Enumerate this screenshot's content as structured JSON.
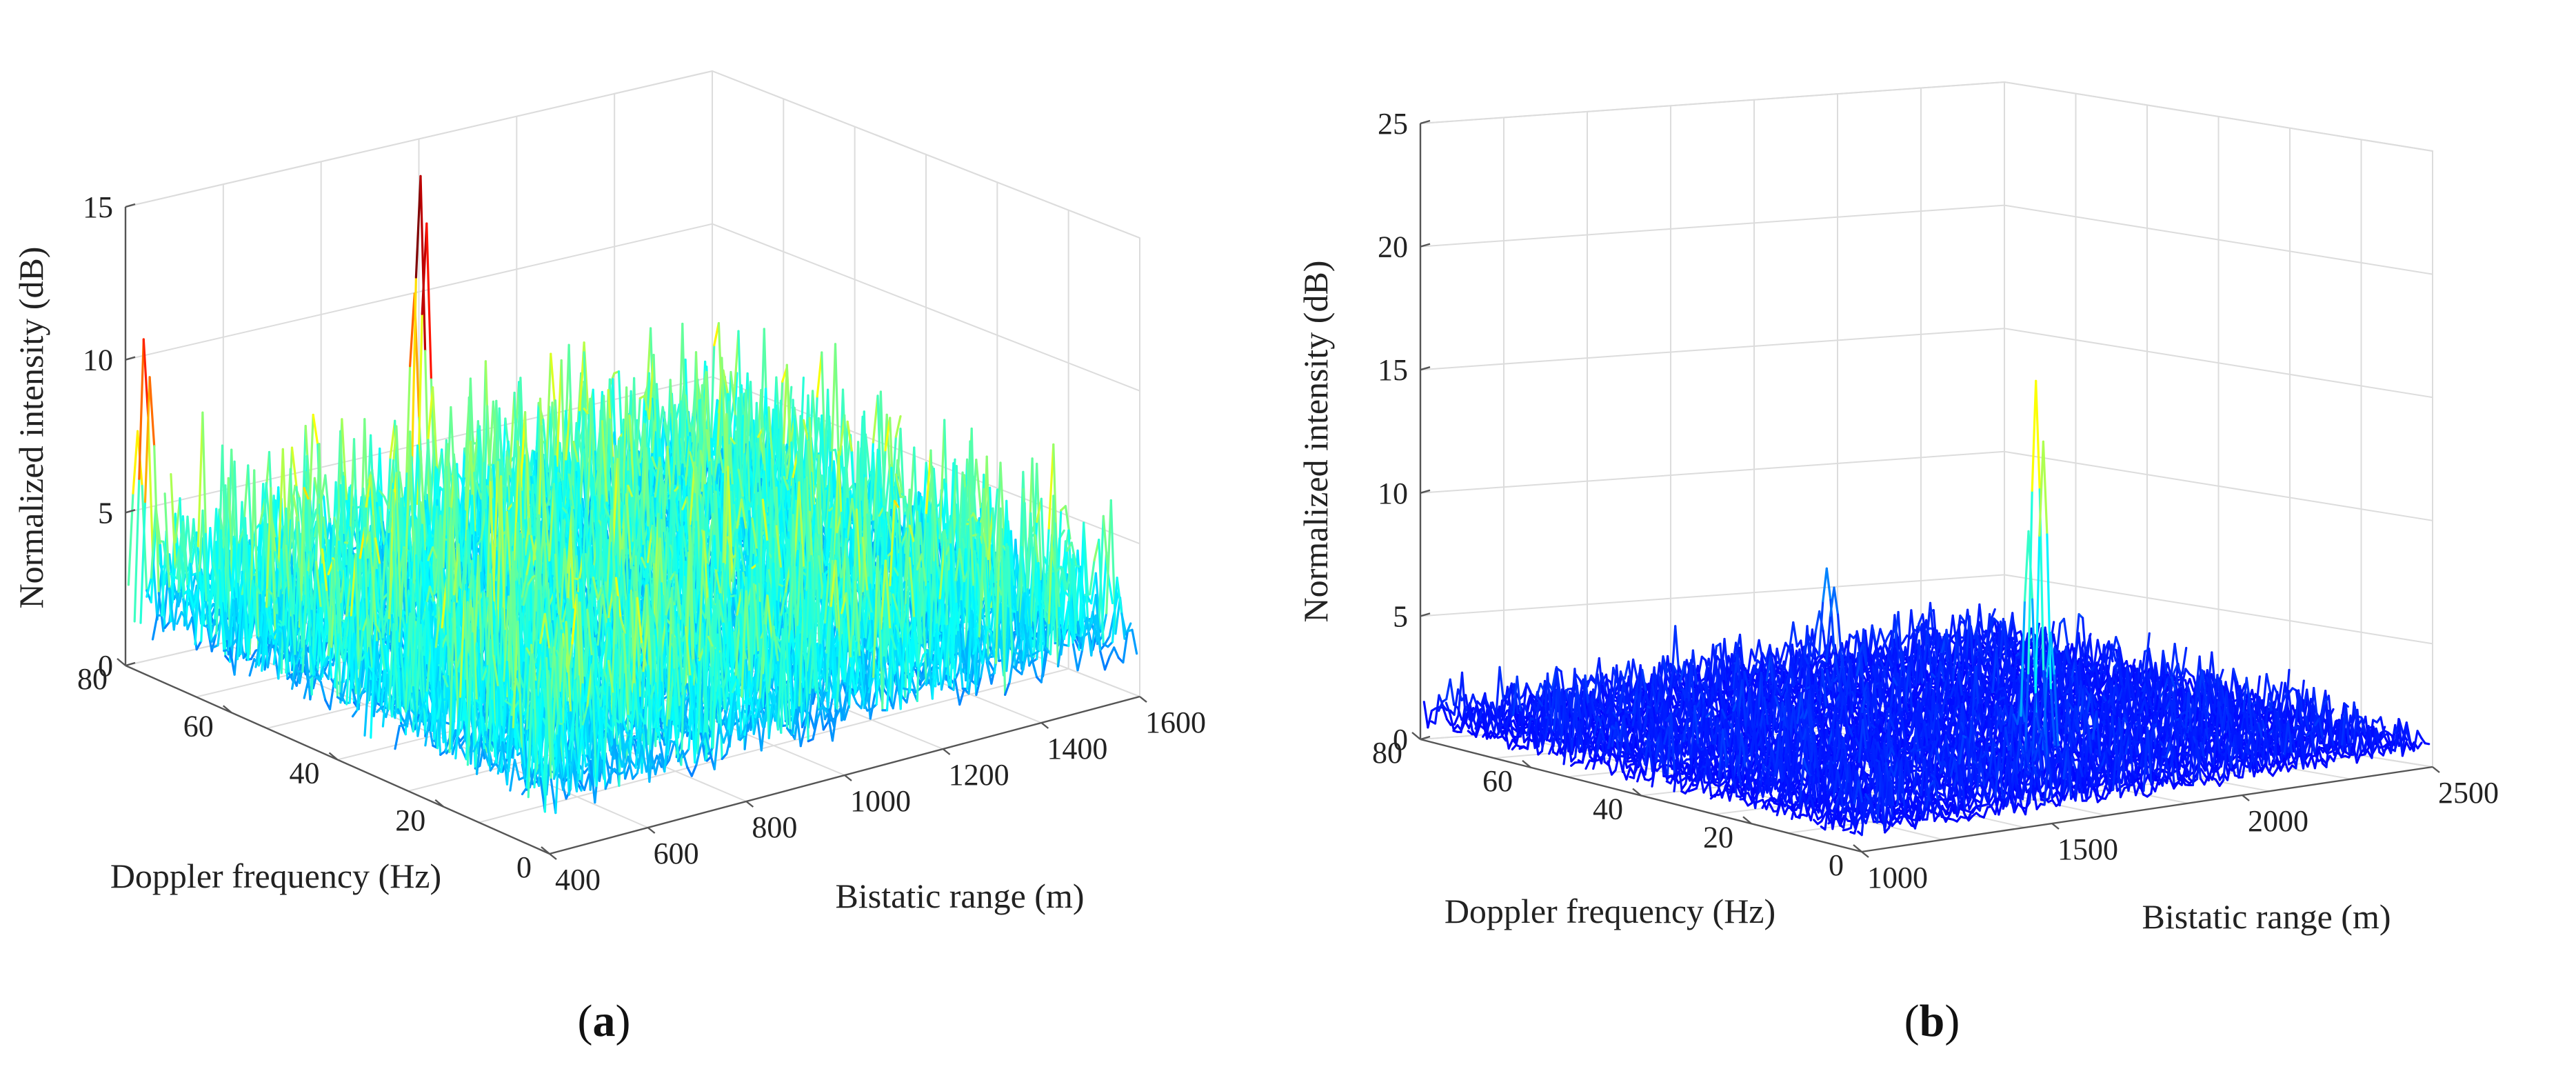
{
  "chart_data": [
    {
      "type": "surface",
      "panel_label": "(a)",
      "panel_letter": "a",
      "zlabel": "Normalized intensity (dB)",
      "ylabel": "Doppler frequency (Hz)",
      "xlabel": "Bistatic range (m)",
      "zlim": [
        0,
        15
      ],
      "z_ticks": [
        "0",
        "5",
        "10",
        "15"
      ],
      "doppler_range": [
        0,
        80
      ],
      "doppler_ticks": [
        "0",
        "20",
        "40",
        "60",
        "80"
      ],
      "range_lim": [
        400,
        1600
      ],
      "range_ticks": [
        "400",
        "600",
        "800",
        "1000",
        "1200",
        "1400",
        "1600"
      ],
      "noise_floor_db": 5,
      "peaks": [
        {
          "range_m": 980,
          "doppler_hz": 78,
          "intensity_db": 14
        },
        {
          "range_m": 420,
          "doppler_hz": 78,
          "intensity_db": 11
        },
        {
          "range_m": 900,
          "doppler_hz": 5,
          "intensity_db": 6
        },
        {
          "range_m": 1420,
          "doppler_hz": 15,
          "intensity_db": 6
        }
      ]
    },
    {
      "type": "surface",
      "panel_label": "(b)",
      "panel_letter": "b",
      "zlabel": "Normalized intensity (dB)",
      "ylabel": "Doppler frequency (Hz)",
      "xlabel": "Bistatic range (m)",
      "zlim": [
        0,
        25
      ],
      "z_ticks": [
        "0",
        "5",
        "10",
        "15",
        "20",
        "25"
      ],
      "doppler_range": [
        0,
        80
      ],
      "doppler_ticks": [
        "0",
        "20",
        "40",
        "60",
        "80"
      ],
      "range_lim": [
        1000,
        2500
      ],
      "range_ticks": [
        "1000",
        "1500",
        "2000",
        "2500"
      ],
      "noise_floor_db": 2,
      "peaks": [
        {
          "range_m": 1680,
          "doppler_hz": 15,
          "intensity_db": 17
        },
        {
          "range_m": 2000,
          "doppler_hz": 75,
          "intensity_db": 5
        }
      ]
    }
  ]
}
